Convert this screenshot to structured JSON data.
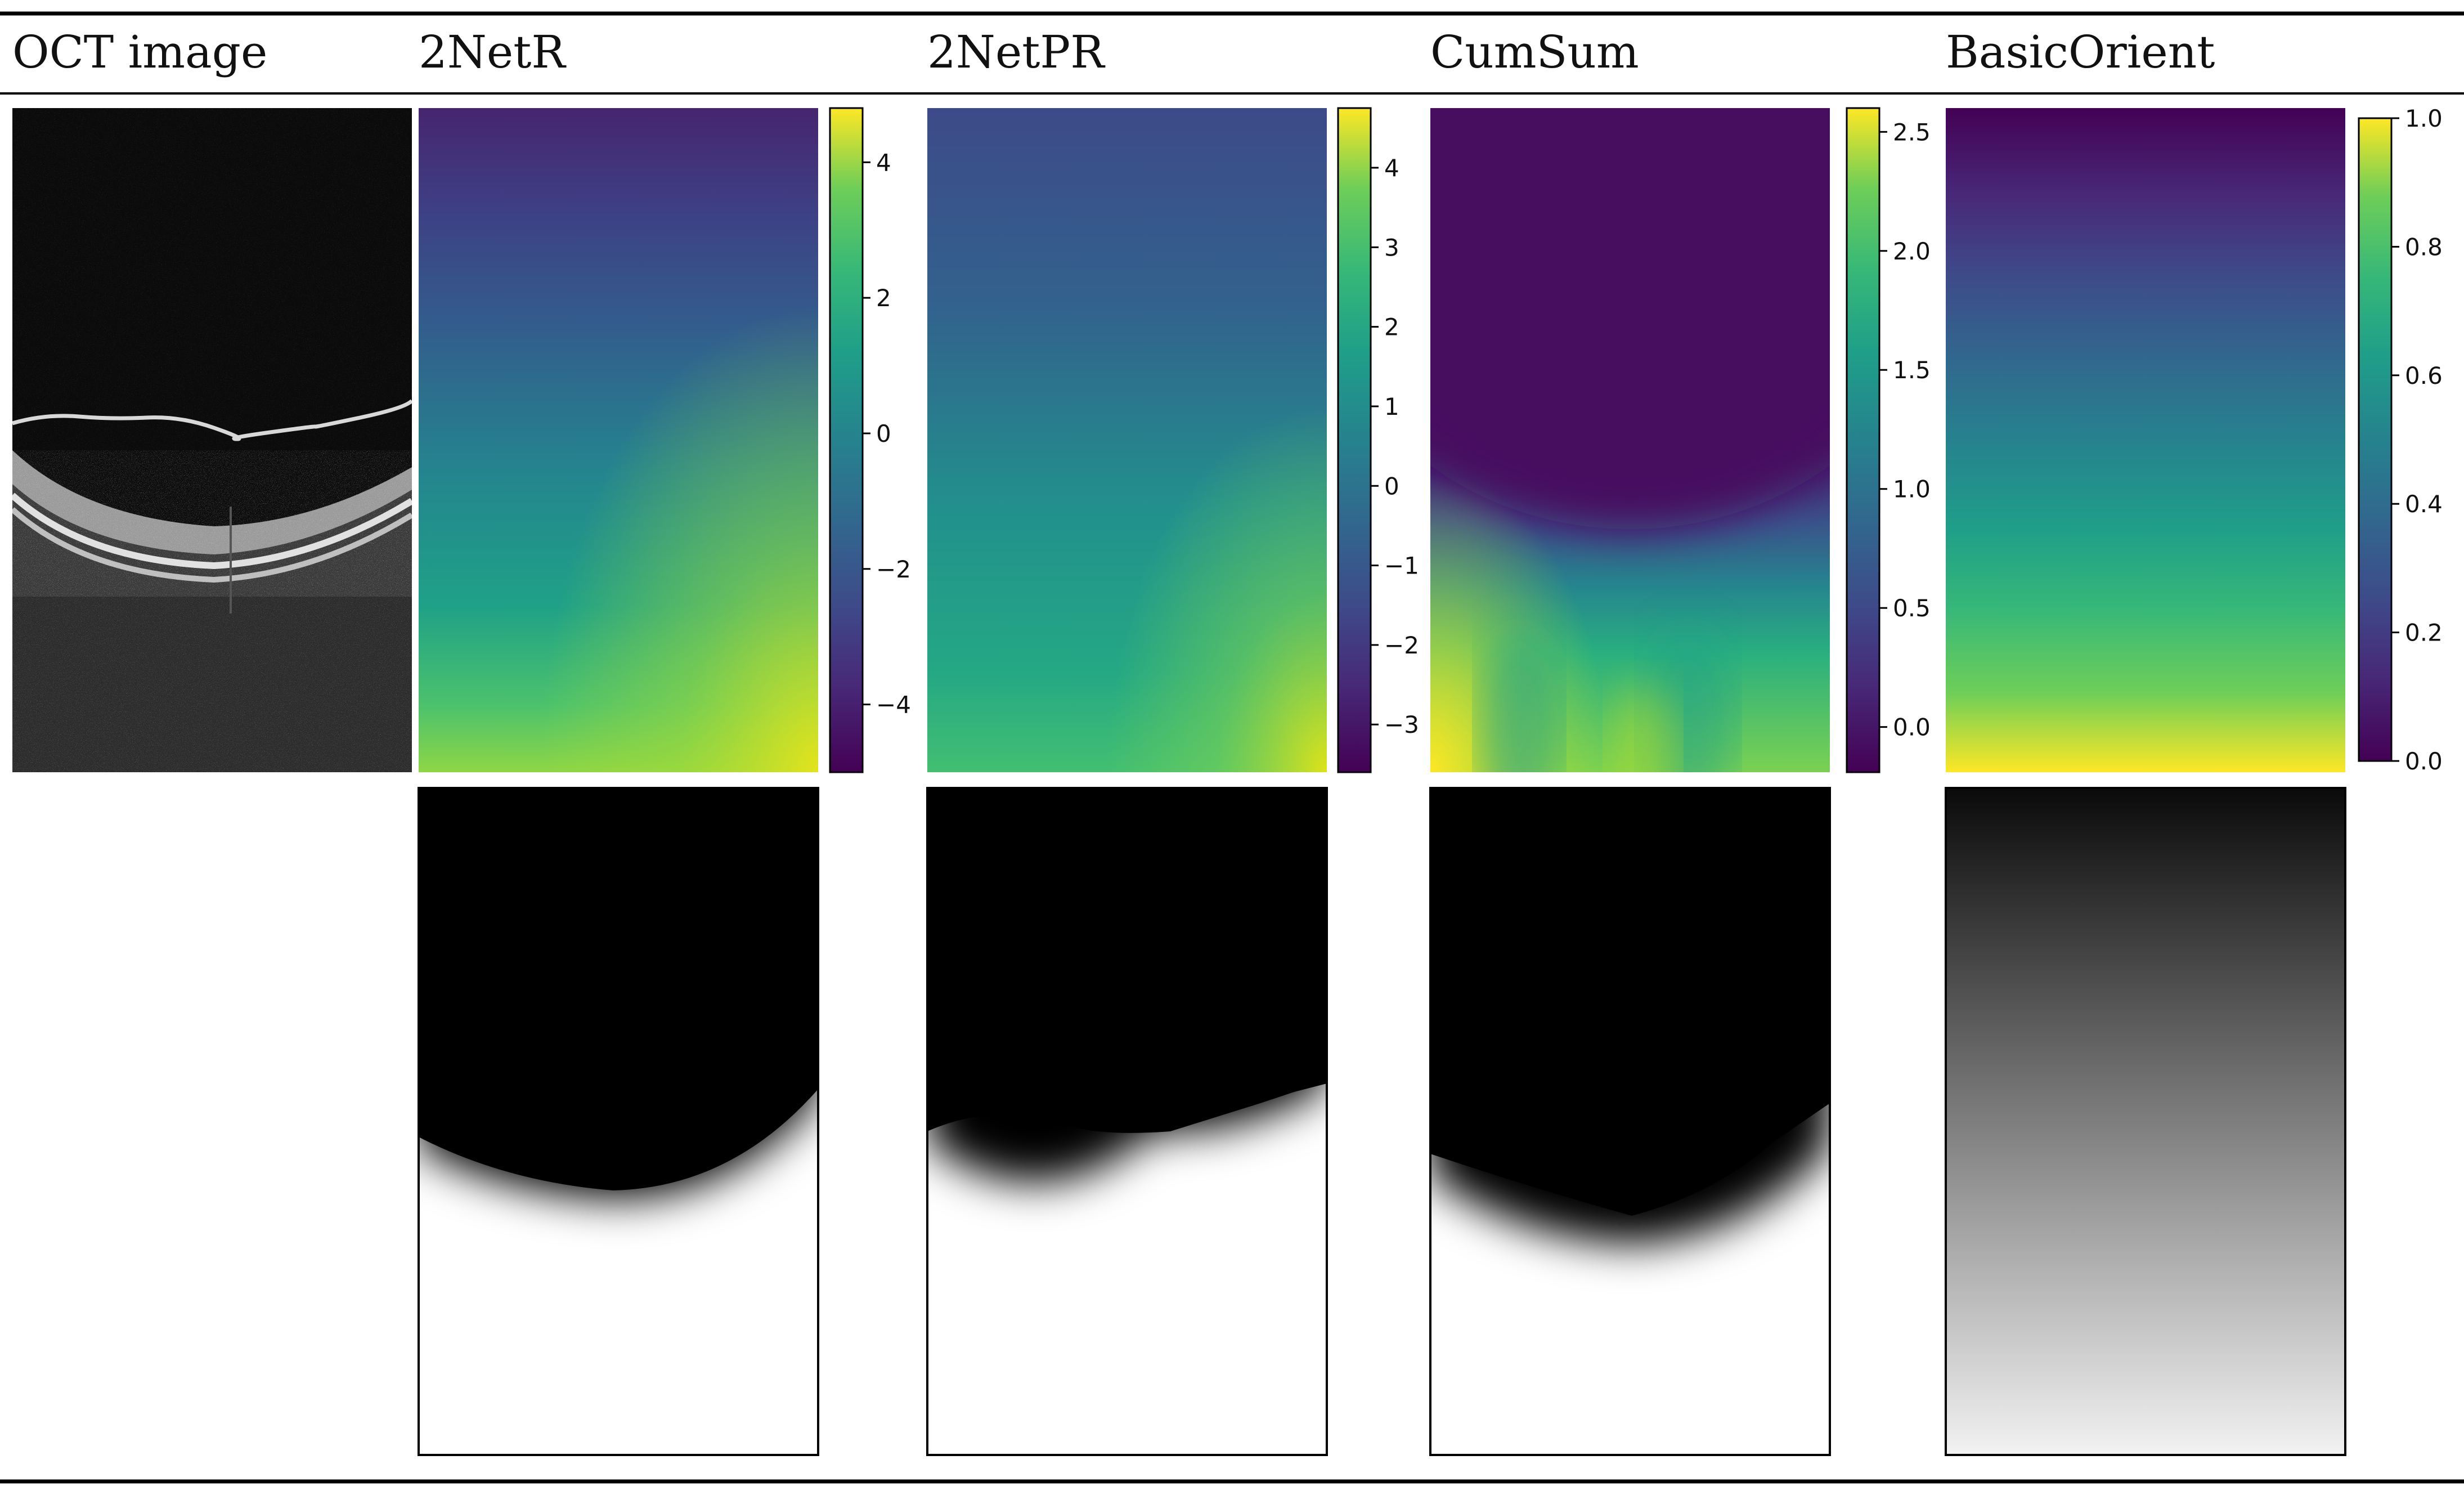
{
  "figure": {
    "columns": [
      {
        "id": "oct",
        "header": "OCT image"
      },
      {
        "id": "2netr",
        "header": "2NetR",
        "colorbar_ticks": [
          4,
          2,
          0,
          -2,
          -4
        ],
        "colorbar_labels": [
          "4",
          "2",
          "0",
          "−2",
          "−4"
        ],
        "colorbar_range": [
          -5,
          4.8
        ]
      },
      {
        "id": "2netpr",
        "header": "2NetPR",
        "colorbar_ticks": [
          4,
          3,
          2,
          1,
          0,
          -1,
          -2,
          -3
        ],
        "colorbar_labels": [
          "4",
          "3",
          "2",
          "1",
          "0",
          "−1",
          "−2",
          "−3"
        ],
        "colorbar_range": [
          -3.6,
          4.75
        ]
      },
      {
        "id": "cumsum",
        "header": "CumSum",
        "colorbar_ticks": [
          2.5,
          2.0,
          1.5,
          1.0,
          0.5,
          0.0
        ],
        "colorbar_labels": [
          "2.5",
          "2.0",
          "1.5",
          "1.0",
          "0.5",
          "0.0"
        ],
        "colorbar_range": [
          -0.19,
          2.6
        ]
      },
      {
        "id": "basicorient",
        "header": "BasicOrient",
        "colorbar_ticks": [
          1.0,
          0.8,
          0.6,
          0.4,
          0.2,
          0.0
        ],
        "colorbar_labels": [
          "1.0",
          "0.8",
          "0.6",
          "0.4",
          "0.2",
          "0.0"
        ],
        "colorbar_range": [
          0,
          1.0
        ]
      }
    ],
    "colormap": "viridis",
    "colors": {
      "rule": "#000000",
      "text": "#111111"
    }
  }
}
